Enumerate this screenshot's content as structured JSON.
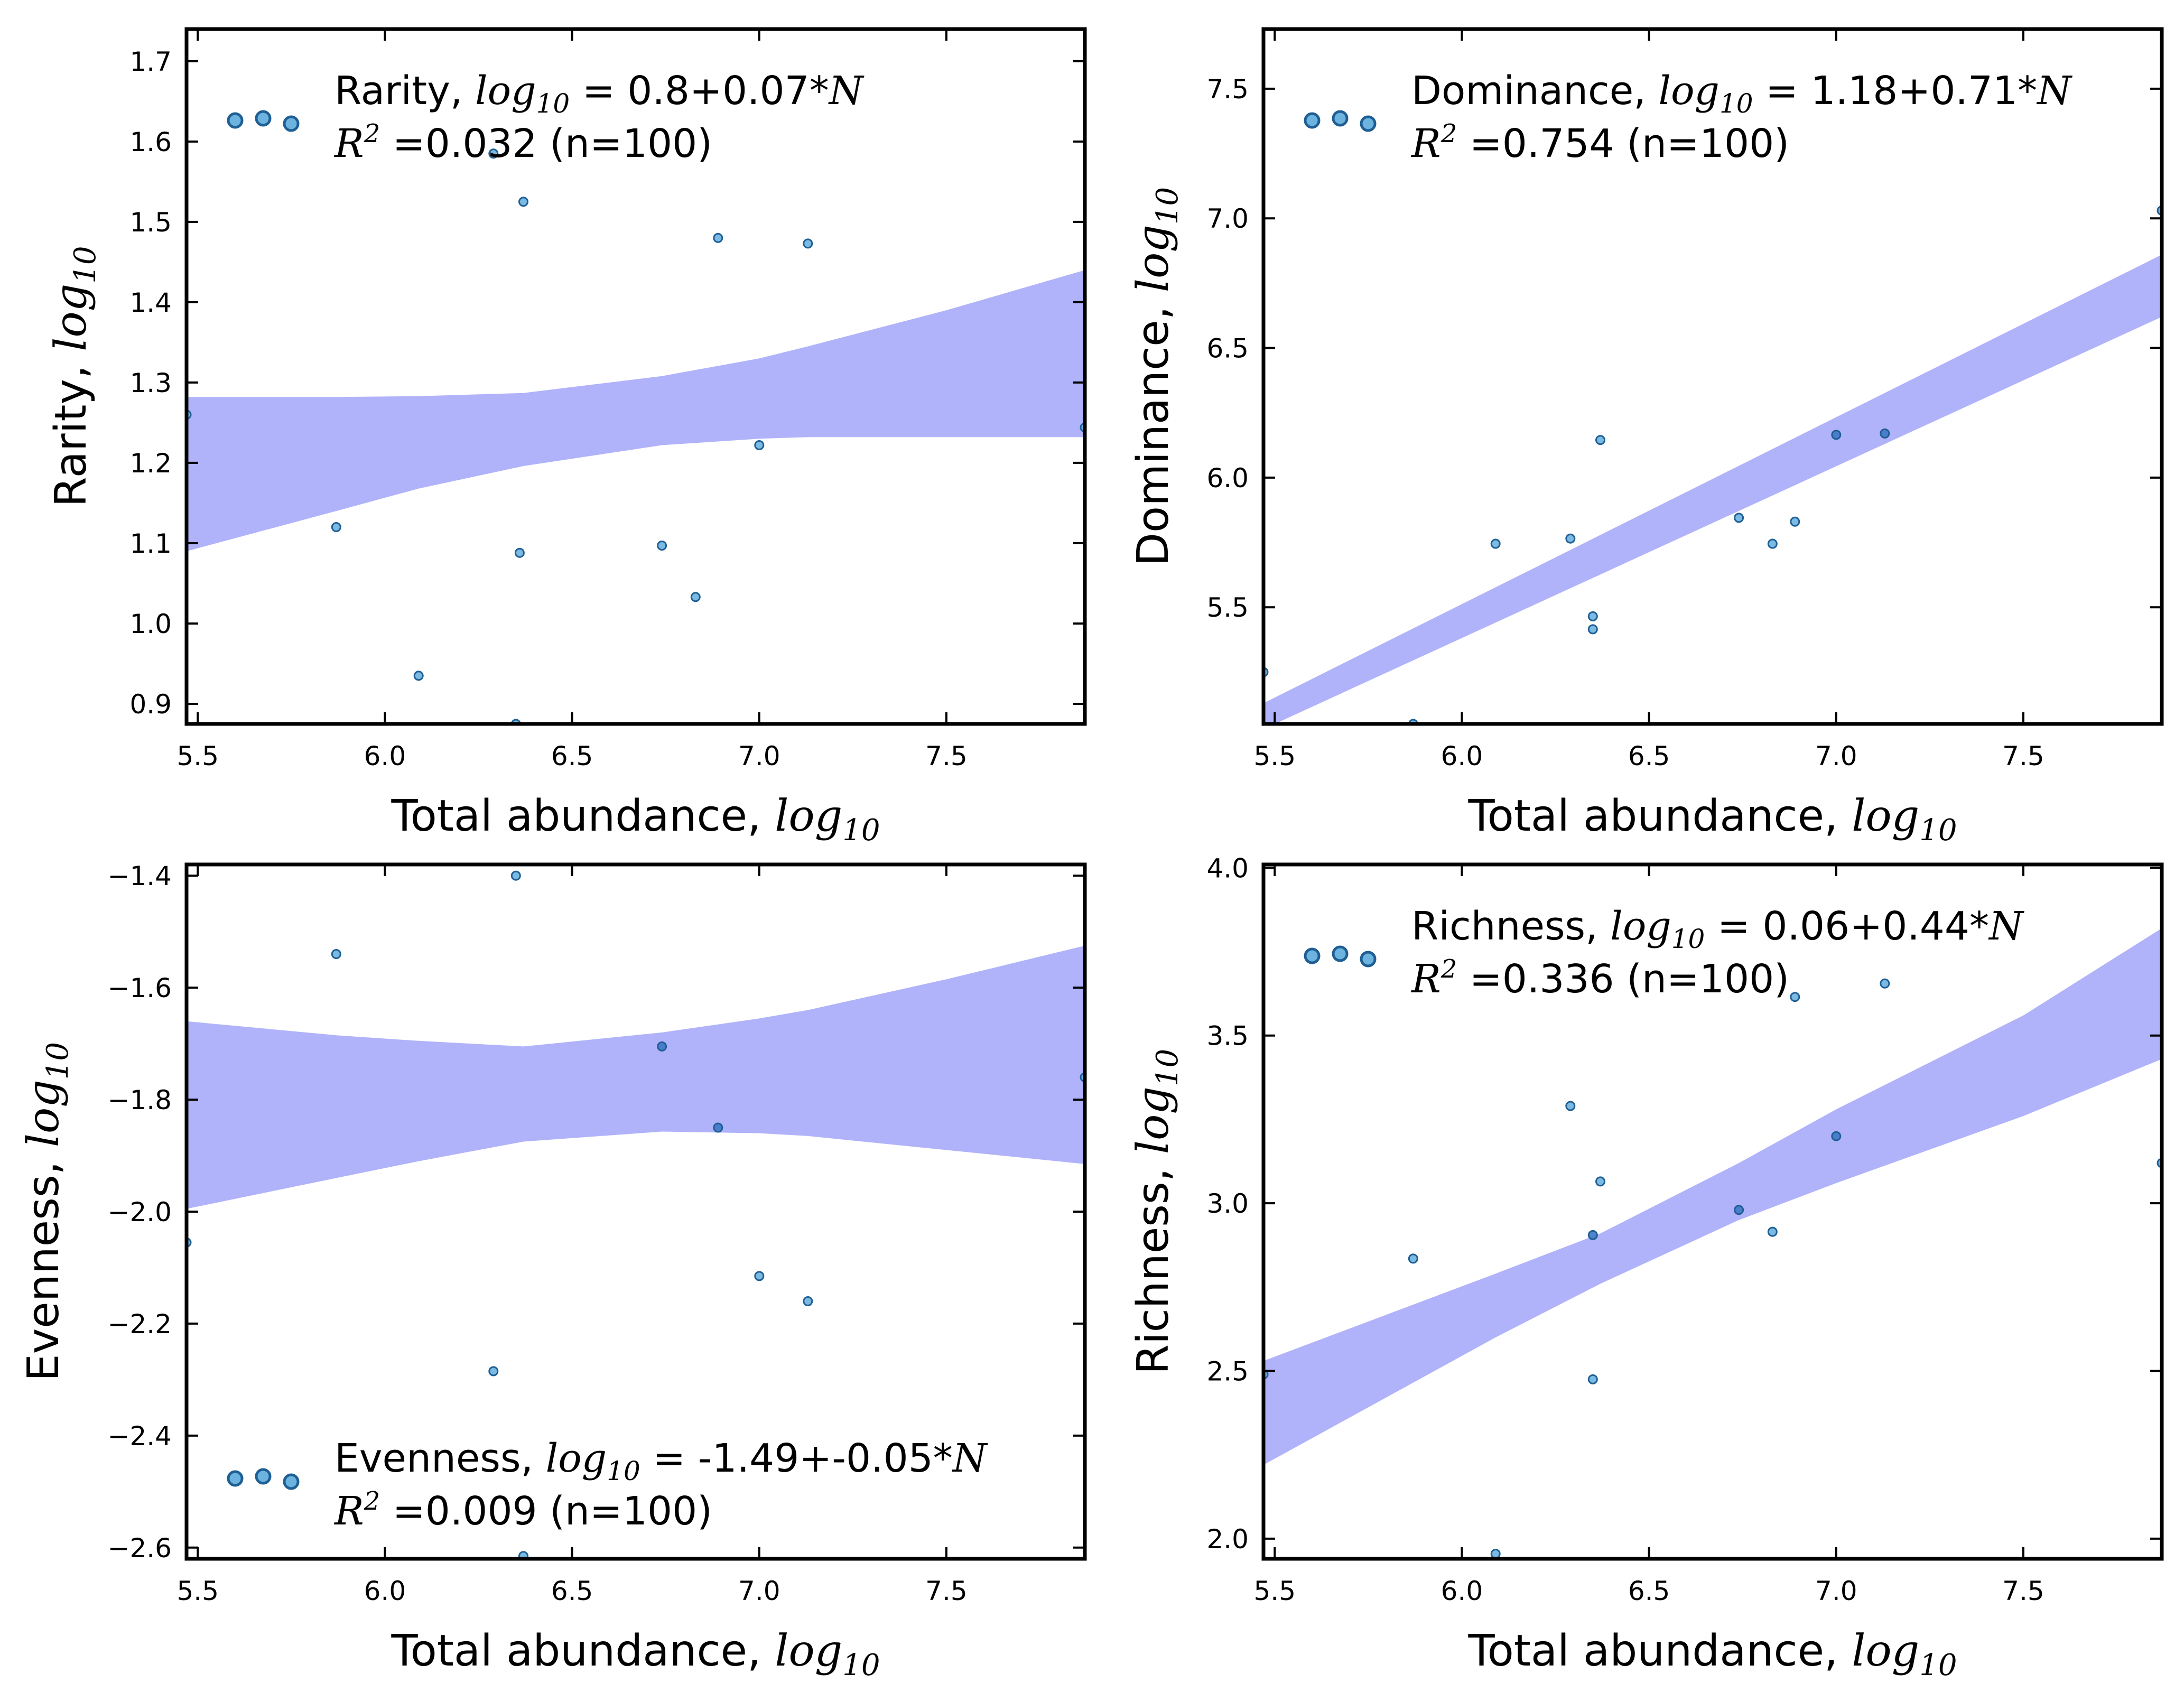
{
  "figure": {
    "colors": {
      "band": "#b0b3fa",
      "point_fill": "#6cb3e0",
      "point_edge": "#1f5f94",
      "point_dark_fill": "#3f78c6",
      "axes": "#000000"
    }
  },
  "chart_data": [
    {
      "type": "scatter",
      "id": "rarity",
      "xlabel": {
        "text": "Total abundance, ",
        "math": "log",
        "sub": "10"
      },
      "ylabel": {
        "text": "Rarity, ",
        "math": "log",
        "sub": "10"
      },
      "xlim": [
        5.47,
        7.87
      ],
      "ylim": [
        0.875,
        1.74
      ],
      "xticks": [
        "5.5",
        "6.0",
        "6.5",
        "7.0",
        "7.5"
      ],
      "yticks": [
        "0.9",
        "1.0",
        "1.1",
        "1.2",
        "1.3",
        "1.4",
        "1.5",
        "1.6",
        "1.7"
      ],
      "legend": {
        "position": "top-left",
        "line1": {
          "name": "Rarity, ",
          "math": "log",
          "sub": "10",
          "rest": " = 0.8+0.07*",
          "var": "N"
        },
        "line2": {
          "math": "R",
          "sup": "2",
          "rest": " =0.032 (n=100)"
        }
      },
      "band": {
        "x": [
          5.47,
          5.87,
          6.09,
          6.37,
          6.74,
          7.0,
          7.13,
          7.5,
          7.87
        ],
        "lower": [
          1.09,
          1.14,
          1.168,
          1.196,
          1.222,
          1.23,
          1.232,
          1.232,
          1.232
        ],
        "upper": [
          1.282,
          1.282,
          1.283,
          1.287,
          1.308,
          1.33,
          1.345,
          1.39,
          1.44
        ]
      },
      "points": [
        {
          "x": 5.47,
          "y": 1.26
        },
        {
          "x": 5.87,
          "y": 1.12
        },
        {
          "x": 6.09,
          "y": 0.935
        },
        {
          "x": 6.29,
          "y": 1.585
        },
        {
          "x": 6.35,
          "y": 0.875
        },
        {
          "x": 6.36,
          "y": 1.088
        },
        {
          "x": 6.37,
          "y": 1.525
        },
        {
          "x": 6.74,
          "y": 1.097
        },
        {
          "x": 6.83,
          "y": 1.033
        },
        {
          "x": 6.89,
          "y": 1.48
        },
        {
          "x": 7.0,
          "y": 1.222
        },
        {
          "x": 7.13,
          "y": 1.473
        },
        {
          "x": 7.87,
          "y": 1.244
        }
      ]
    },
    {
      "type": "scatter",
      "id": "dominance",
      "xlabel": {
        "text": "Total abundance, ",
        "math": "log",
        "sub": "10"
      },
      "ylabel": {
        "text": "Dominance, ",
        "math": "log",
        "sub": "10"
      },
      "xlim": [
        5.47,
        7.87
      ],
      "ylim": [
        5.05,
        7.73
      ],
      "xticks": [
        "5.5",
        "6.0",
        "6.5",
        "7.0",
        "7.5"
      ],
      "yticks": [
        "5.5",
        "6.0",
        "6.5",
        "7.0",
        "7.5"
      ],
      "legend": {
        "position": "top-left",
        "line1": {
          "name": "Dominance, ",
          "math": "log",
          "sub": "10",
          "rest": " = 1.18+0.71*",
          "var": "N"
        },
        "line2": {
          "math": "R",
          "sup": "2",
          "rest": " =0.754 (n=100)"
        }
      },
      "band": {
        "x": [
          5.47,
          7.87
        ],
        "lower": [
          5.03,
          6.62
        ],
        "upper": [
          5.13,
          6.86
        ]
      },
      "points": [
        {
          "x": 5.47,
          "y": 5.25
        },
        {
          "x": 5.87,
          "y": 5.05
        },
        {
          "x": 6.09,
          "y": 5.745
        },
        {
          "x": 6.29,
          "y": 5.765
        },
        {
          "x": 6.35,
          "y": 5.465
        },
        {
          "x": 6.35,
          "y": 5.415
        },
        {
          "x": 6.37,
          "y": 6.145
        },
        {
          "x": 6.74,
          "y": 5.845
        },
        {
          "x": 6.83,
          "y": 5.745
        },
        {
          "x": 6.89,
          "y": 5.83
        },
        {
          "x": 7.0,
          "y": 6.165,
          "dark": true
        },
        {
          "x": 7.13,
          "y": 6.17,
          "dark": true
        },
        {
          "x": 7.87,
          "y": 7.03
        }
      ]
    },
    {
      "type": "scatter",
      "id": "evenness",
      "xlabel": {
        "text": "Total abundance, ",
        "math": "log",
        "sub": "10"
      },
      "ylabel": {
        "text": "Evenness, ",
        "math": "log",
        "sub": "10"
      },
      "xlim": [
        5.47,
        7.87
      ],
      "ylim": [
        -2.62,
        -1.38
      ],
      "xticks": [
        "5.5",
        "6.0",
        "6.5",
        "7.0",
        "7.5"
      ],
      "yticks": [
        "−2.6",
        "−2.4",
        "−2.2",
        "−2.0",
        "−1.8",
        "−1.6",
        "−1.4"
      ],
      "legend": {
        "position": "bottom-left",
        "line1": {
          "name": "Evenness, ",
          "math": "log",
          "sub": "10",
          "rest": " = -1.49+-0.05*",
          "var": "N"
        },
        "line2": {
          "math": "R",
          "sup": "2",
          "rest": " =0.009 (n=100)"
        }
      },
      "band": {
        "x": [
          5.47,
          5.87,
          6.09,
          6.37,
          6.74,
          7.0,
          7.13,
          7.5,
          7.87
        ],
        "lower": [
          -1.995,
          -1.94,
          -1.91,
          -1.875,
          -1.857,
          -1.86,
          -1.865,
          -1.89,
          -1.915
        ],
        "upper": [
          -1.66,
          -1.685,
          -1.695,
          -1.705,
          -1.68,
          -1.655,
          -1.64,
          -1.585,
          -1.525
        ]
      },
      "points": [
        {
          "x": 5.47,
          "y": -2.055
        },
        {
          "x": 5.87,
          "y": -1.54
        },
        {
          "x": 6.29,
          "y": -2.285
        },
        {
          "x": 6.35,
          "y": -1.4
        },
        {
          "x": 6.37,
          "y": -2.615
        },
        {
          "x": 6.74,
          "y": -1.705,
          "dark": true
        },
        {
          "x": 6.89,
          "y": -1.85,
          "dark": true
        },
        {
          "x": 7.0,
          "y": -2.115
        },
        {
          "x": 7.13,
          "y": -2.16
        },
        {
          "x": 7.87,
          "y": -1.76
        }
      ]
    },
    {
      "type": "scatter",
      "id": "richness",
      "xlabel": {
        "text": "Total abundance, ",
        "math": "log",
        "sub": "10"
      },
      "ylabel": {
        "text": "Richness, ",
        "math": "log",
        "sub": "10"
      },
      "xlim": [
        5.47,
        7.87
      ],
      "ylim": [
        1.94,
        4.01
      ],
      "xticks": [
        "5.5",
        "6.0",
        "6.5",
        "7.0",
        "7.5"
      ],
      "yticks": [
        "2.0",
        "2.5",
        "3.0",
        "3.5",
        "4.0"
      ],
      "legend": {
        "position": "top-left",
        "line1": {
          "name": "Richness, ",
          "math": "log",
          "sub": "10",
          "rest": " = 0.06+0.44*",
          "var": "N"
        },
        "line2": {
          "math": "R",
          "sup": "2",
          "rest": " =0.336 (n=100)"
        }
      },
      "band": {
        "x": [
          5.47,
          6.09,
          6.37,
          6.74,
          7.0,
          7.5,
          7.87
        ],
        "lower": [
          2.22,
          2.6,
          2.76,
          2.95,
          3.06,
          3.26,
          3.43
        ],
        "upper": [
          2.53,
          2.79,
          2.91,
          3.12,
          3.28,
          3.56,
          3.82
        ]
      },
      "points": [
        {
          "x": 5.47,
          "y": 2.49
        },
        {
          "x": 5.87,
          "y": 2.835
        },
        {
          "x": 6.09,
          "y": 1.955
        },
        {
          "x": 6.29,
          "y": 3.29
        },
        {
          "x": 6.35,
          "y": 2.475
        },
        {
          "x": 6.35,
          "y": 2.905,
          "dark": true
        },
        {
          "x": 6.37,
          "y": 3.065
        },
        {
          "x": 6.74,
          "y": 2.98,
          "dark": true
        },
        {
          "x": 6.83,
          "y": 2.915
        },
        {
          "x": 6.89,
          "y": 3.615
        },
        {
          "x": 7.0,
          "y": 3.2,
          "dark": true
        },
        {
          "x": 7.13,
          "y": 3.655
        },
        {
          "x": 7.87,
          "y": 3.12
        }
      ]
    }
  ]
}
